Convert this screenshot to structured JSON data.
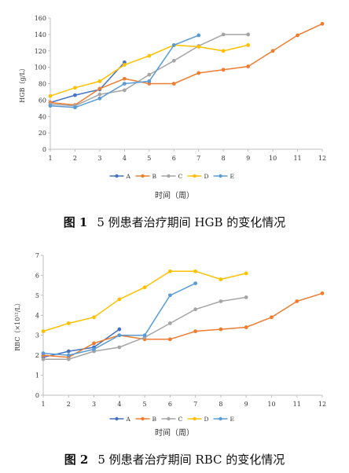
{
  "chart_data": [
    {
      "type": "line",
      "ylabel": "HGB（g/L）",
      "xlabel": "时间（周）",
      "xlim": [
        1,
        12
      ],
      "ylim": [
        0,
        160
      ],
      "yticks": [
        0,
        20,
        40,
        60,
        80,
        100,
        120,
        140,
        160
      ],
      "xticks": [
        1,
        2,
        3,
        4,
        5,
        6,
        7,
        8,
        9,
        10,
        11,
        12
      ],
      "legend_position": "bottom",
      "series": [
        {
          "name": "A",
          "color": "#4472c4",
          "x": [
            1,
            2,
            3,
            4
          ],
          "values": [
            57,
            66,
            73,
            106
          ]
        },
        {
          "name": "B",
          "color": "#ed7d31",
          "x": [
            1,
            2,
            3,
            4,
            5,
            6,
            7,
            8,
            9,
            10,
            11,
            12
          ],
          "values": [
            57,
            54,
            74,
            86,
            80,
            80,
            93,
            97,
            101,
            120,
            139,
            153
          ]
        },
        {
          "name": "C",
          "color": "#a5a5a5",
          "x": [
            1,
            2,
            3,
            4,
            5,
            6,
            7,
            8,
            9
          ],
          "values": [
            55,
            53,
            67,
            72,
            91,
            108,
            126,
            140,
            140
          ]
        },
        {
          "name": "D",
          "color": "#ffc000",
          "x": [
            1,
            2,
            3,
            4,
            5,
            6,
            7,
            8,
            9
          ],
          "values": [
            65,
            75,
            83,
            103,
            114,
            127,
            125,
            120,
            127
          ]
        },
        {
          "name": "E",
          "color": "#5b9bd5",
          "x": [
            1,
            2,
            3,
            4,
            5,
            6,
            7
          ],
          "values": [
            53,
            51,
            62,
            80,
            83,
            127,
            139
          ]
        }
      ]
    },
    {
      "type": "line",
      "ylabel": "RBC（×10¹²/L）",
      "xlabel": "时间（周）",
      "xlim": [
        1,
        12
      ],
      "ylim": [
        0,
        7
      ],
      "yticks": [
        0,
        1,
        2,
        3,
        4,
        5,
        6,
        7
      ],
      "xticks": [
        1,
        2,
        3,
        4,
        5,
        6,
        7,
        8,
        9,
        10,
        11,
        12
      ],
      "legend_position": "bottom",
      "series": [
        {
          "name": "A",
          "color": "#4472c4",
          "x": [
            1,
            2,
            3,
            4
          ],
          "values": [
            1.9,
            2.2,
            2.4,
            3.3
          ]
        },
        {
          "name": "B",
          "color": "#ed7d31",
          "x": [
            1,
            2,
            3,
            4,
            5,
            6,
            7,
            8,
            9,
            10,
            11,
            12
          ],
          "values": [
            2.0,
            1.9,
            2.6,
            3.0,
            2.8,
            2.8,
            3.2,
            3.3,
            3.4,
            3.9,
            4.7,
            5.1
          ]
        },
        {
          "name": "C",
          "color": "#a5a5a5",
          "x": [
            1,
            2,
            3,
            4,
            5,
            6,
            7,
            8,
            9
          ],
          "values": [
            1.8,
            1.8,
            2.2,
            2.4,
            2.9,
            3.6,
            4.3,
            4.7,
            4.9
          ]
        },
        {
          "name": "D",
          "color": "#ffc000",
          "x": [
            1,
            2,
            3,
            4,
            5,
            6,
            7,
            8,
            9
          ],
          "values": [
            3.2,
            3.6,
            3.9,
            4.8,
            5.4,
            6.2,
            6.2,
            5.8,
            6.1
          ]
        },
        {
          "name": "E",
          "color": "#5b9bd5",
          "x": [
            1,
            2,
            3,
            4,
            5,
            6,
            7
          ],
          "values": [
            2.1,
            2.0,
            2.3,
            3.0,
            3.0,
            5.0,
            5.6
          ]
        }
      ]
    }
  ],
  "captions": [
    {
      "number": "图 1",
      "text": "5 例患者治疗期间 HGB 的变化情况"
    },
    {
      "number": "图 2",
      "text": "5 例患者治疗期间 RBC 的变化情况"
    }
  ]
}
